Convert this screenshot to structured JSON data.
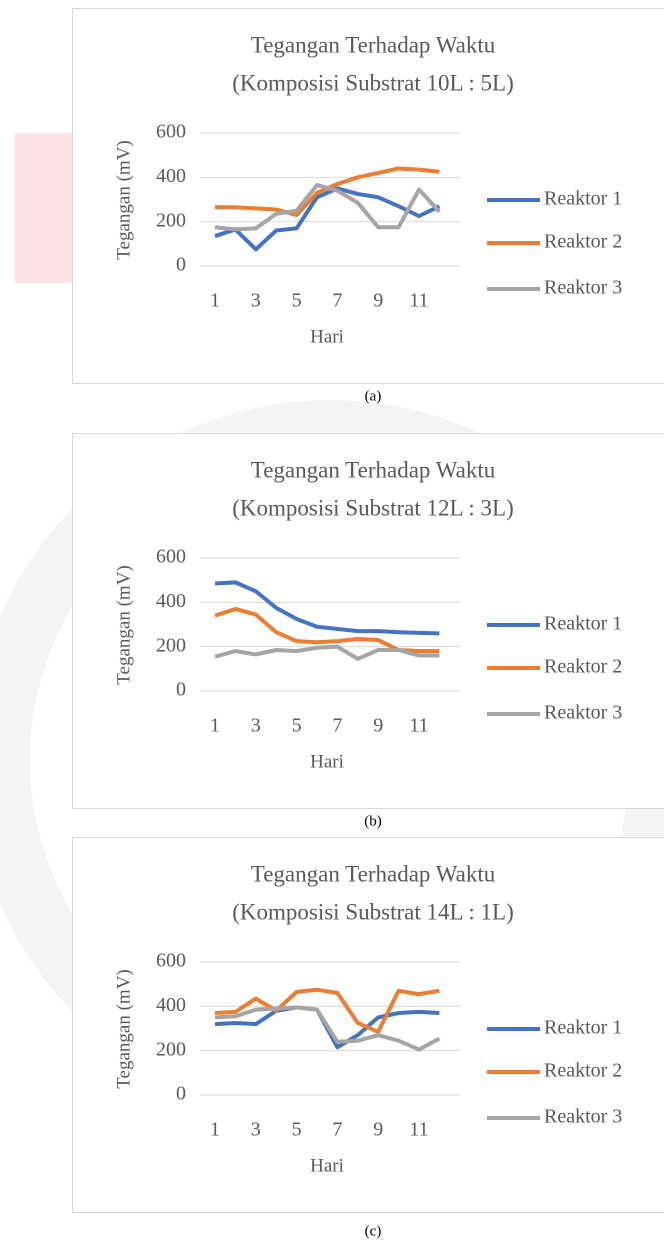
{
  "chart_data": [
    {
      "type": "line",
      "title": "Tegangan Terhadap Waktu",
      "subtitle": "(Komposisi Substrat 10L : 5L)",
      "x_label": "Hari",
      "y_label": "Tegangan (mV)",
      "caption": "(a)",
      "categories": [
        1,
        null,
        3,
        null,
        5,
        null,
        7,
        null,
        9,
        null,
        11,
        null
      ],
      "ylim": [
        0,
        600
      ],
      "yticks": [
        0,
        200,
        400,
        600
      ],
      "grid": true,
      "legend": "right",
      "series": [
        {
          "name": "Reaktor 1",
          "color": "#4472c4",
          "values": [
            135,
            165,
            75,
            160,
            170,
            310,
            350,
            325,
            310,
            270,
            225,
            270
          ]
        },
        {
          "name": "Reaktor 2",
          "color": "#ed7d31",
          "values": [
            265,
            265,
            260,
            255,
            230,
            330,
            370,
            400,
            420,
            440,
            435,
            425
          ]
        },
        {
          "name": "Reaktor 3",
          "color": "#a5a5a5",
          "values": [
            175,
            165,
            170,
            235,
            250,
            365,
            340,
            285,
            175,
            175,
            345,
            245
          ]
        }
      ]
    },
    {
      "type": "line",
      "title": "Tegangan Terhadap Waktu",
      "subtitle": "(Komposisi Substrat 12L : 3L)",
      "x_label": "Hari",
      "y_label": "Tegangan (mV)",
      "caption": "(b)",
      "categories": [
        1,
        null,
        3,
        null,
        5,
        null,
        7,
        null,
        9,
        null,
        11,
        null
      ],
      "ylim": [
        0,
        600
      ],
      "yticks": [
        0,
        200,
        400,
        600
      ],
      "grid": true,
      "legend": "right",
      "series": [
        {
          "name": "Reaktor 1",
          "color": "#4472c4",
          "values": [
            485,
            490,
            450,
            375,
            325,
            290,
            280,
            270,
            270,
            265,
            262,
            260
          ]
        },
        {
          "name": "Reaktor 2",
          "color": "#ed7d31",
          "values": [
            340,
            370,
            345,
            265,
            225,
            220,
            225,
            235,
            230,
            185,
            180,
            180
          ]
        },
        {
          "name": "Reaktor 3",
          "color": "#a5a5a5",
          "values": [
            155,
            180,
            165,
            185,
            180,
            195,
            200,
            145,
            185,
            185,
            160,
            160
          ]
        }
      ]
    },
    {
      "type": "line",
      "title": "Tegangan Terhadap Waktu",
      "subtitle": "(Komposisi Substrat 14L : 1L)",
      "x_label": "Hari",
      "y_label": "Tegangan (mV)",
      "caption": "(c)",
      "categories": [
        1,
        null,
        3,
        null,
        5,
        null,
        7,
        null,
        9,
        null,
        11,
        null
      ],
      "ylim": [
        0,
        600
      ],
      "yticks": [
        0,
        200,
        400,
        600
      ],
      "grid": true,
      "legend": "right",
      "series": [
        {
          "name": "Reaktor 1",
          "color": "#4472c4",
          "values": [
            320,
            325,
            320,
            380,
            395,
            385,
            215,
            270,
            350,
            370,
            375,
            370
          ]
        },
        {
          "name": "Reaktor 2",
          "color": "#ed7d31",
          "values": [
            370,
            375,
            435,
            380,
            465,
            475,
            460,
            325,
            285,
            470,
            455,
            470
          ]
        },
        {
          "name": "Reaktor 3",
          "color": "#a5a5a5",
          "values": [
            350,
            355,
            385,
            390,
            395,
            385,
            240,
            245,
            270,
            245,
            205,
            255
          ]
        }
      ]
    }
  ]
}
